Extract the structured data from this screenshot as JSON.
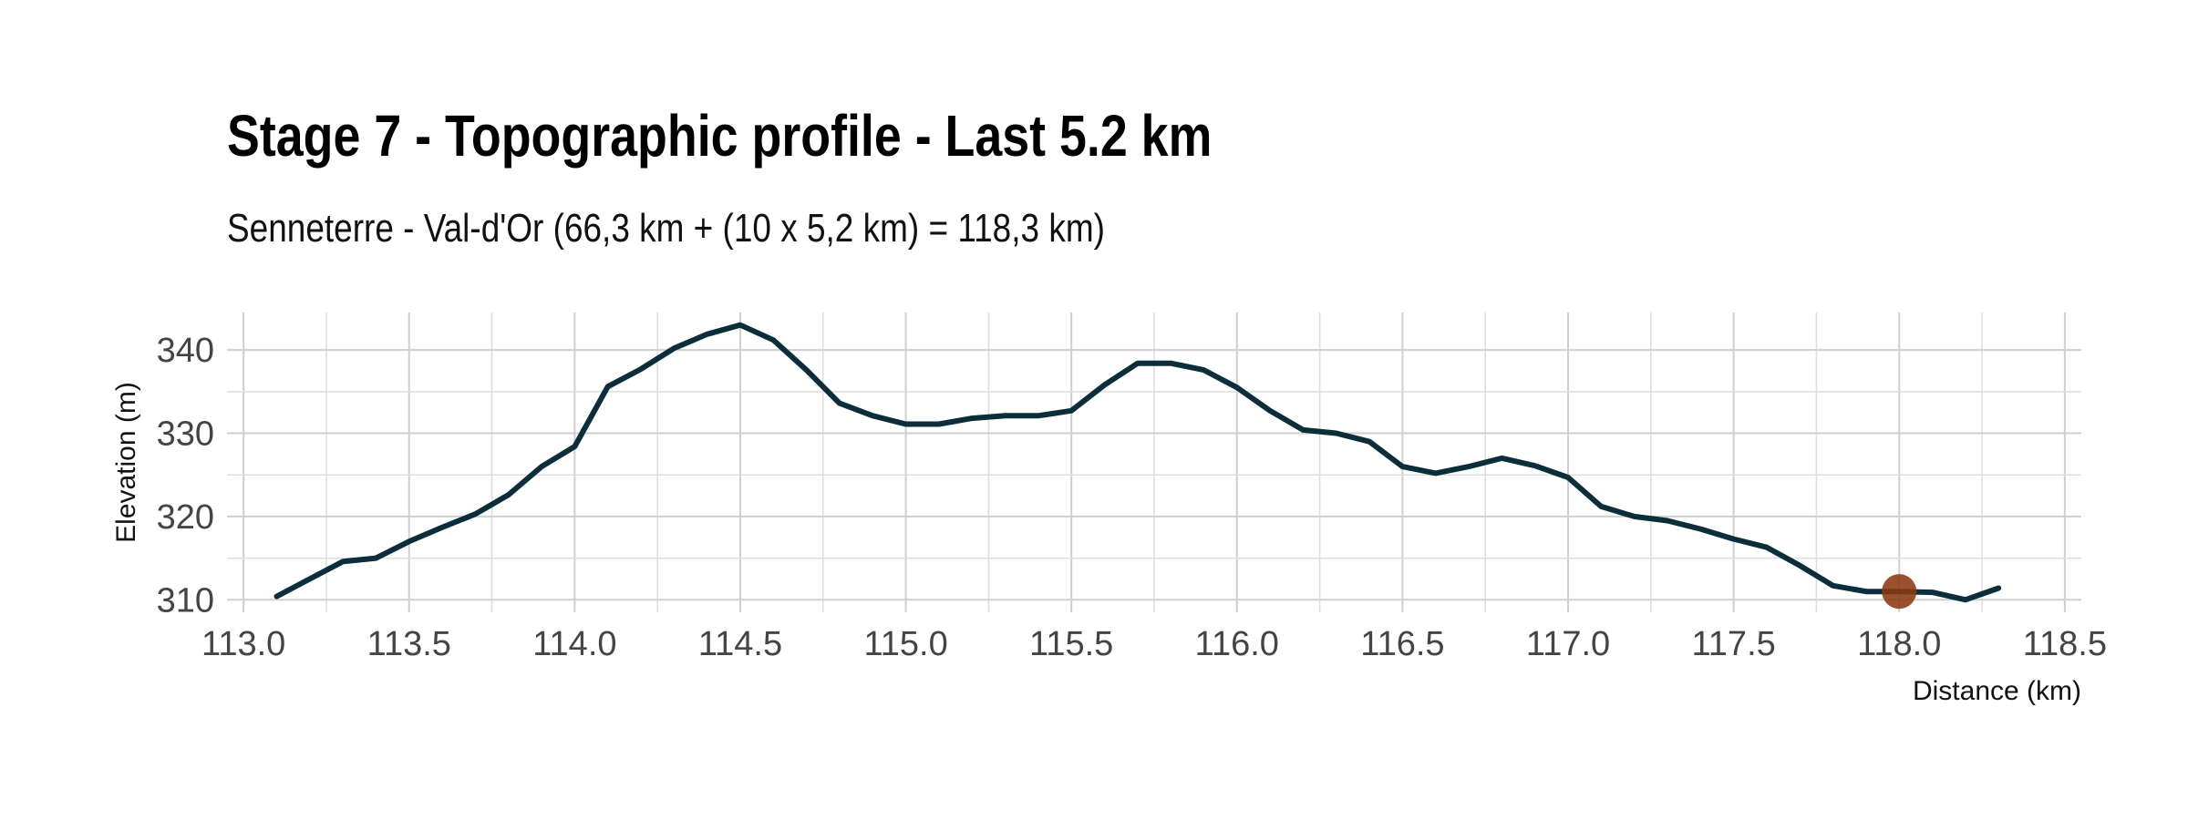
{
  "chart_data": {
    "type": "line",
    "title": "Stage 7 - Topographic profile - Last 5.2 km",
    "subtitle": "Senneterre - Val-d'Or (66,3 km + (10 x 5,2 km) = 118,3 km)",
    "xlabel": "Distance (km)",
    "ylabel": "Elevation (m)",
    "xlim": [
      112.95,
      118.55
    ],
    "ylim": [
      308.5,
      344.5
    ],
    "xticks": [
      "113.0",
      "113.5",
      "114.0",
      "114.5",
      "115.0",
      "115.5",
      "116.0",
      "116.5",
      "117.0",
      "117.5",
      "118.0",
      "118.5"
    ],
    "yticks": [
      "310",
      "320",
      "330",
      "340"
    ],
    "grid": true,
    "series": [
      {
        "color": "#0b2e3a",
        "x": [
          113.1,
          113.2,
          113.3,
          113.4,
          113.5,
          113.6,
          113.7,
          113.8,
          113.9,
          114.0,
          114.1,
          114.2,
          114.3,
          114.4,
          114.5,
          114.6,
          114.7,
          114.8,
          114.9,
          115.0,
          115.1,
          115.2,
          115.3,
          115.4,
          115.5,
          115.6,
          115.7,
          115.8,
          115.9,
          116.0,
          116.1,
          116.2,
          116.3,
          116.4,
          116.5,
          116.6,
          116.7,
          116.8,
          116.9,
          117.0,
          117.1,
          117.2,
          117.3,
          117.4,
          117.5,
          117.6,
          117.7,
          117.8,
          117.9,
          118.0,
          118.1,
          118.2,
          118.3
        ],
        "y": [
          310.4,
          312.5,
          314.6,
          315.0,
          317.0,
          318.7,
          320.3,
          322.6,
          326.0,
          328.4,
          335.6,
          337.7,
          340.2,
          341.9,
          343.0,
          341.2,
          337.6,
          333.6,
          332.1,
          331.1,
          331.1,
          331.8,
          332.1,
          332.1,
          332.7,
          335.8,
          338.4,
          338.4,
          337.6,
          335.5,
          332.7,
          330.4,
          330.0,
          329.0,
          326.0,
          325.2,
          326.0,
          327.0,
          326.1,
          324.7,
          321.2,
          320.0,
          319.5,
          318.5,
          317.3,
          316.3,
          314.1,
          311.7,
          311.0,
          311.0,
          310.9,
          310.0,
          311.4
        ]
      }
    ],
    "marker": {
      "x": 118.0,
      "y": 311.0,
      "color": "#8b3a12"
    }
  }
}
